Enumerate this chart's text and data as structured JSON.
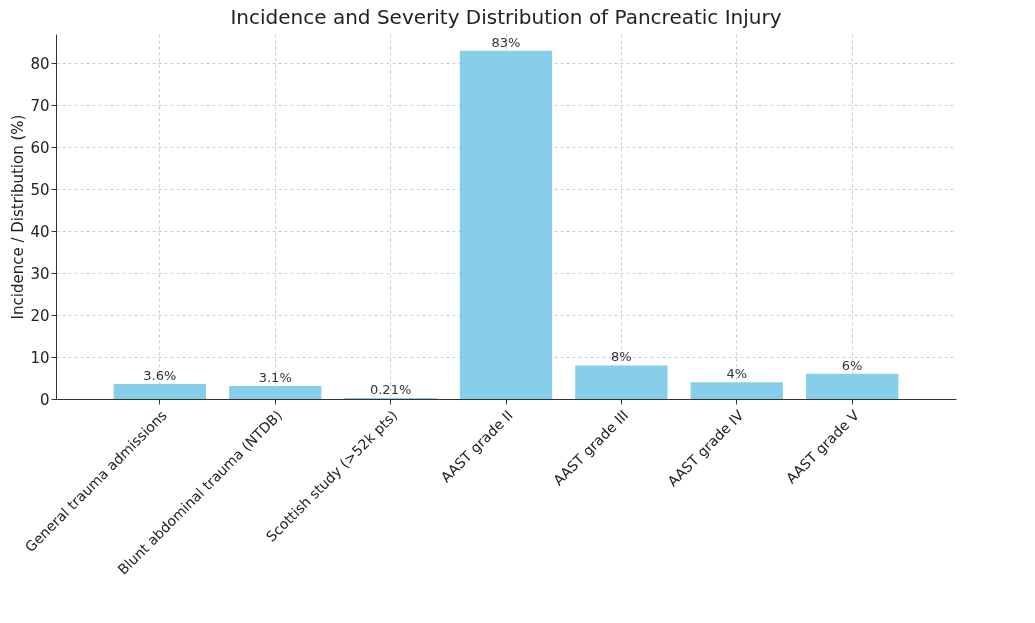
{
  "chart_data": {
    "type": "bar",
    "title": "Incidence and Severity Distribution of Pancreatic Injury",
    "ylabel": "Incidence / Distribution (%)",
    "categories": [
      "General trauma admissions",
      "Blunt abdominal trauma (NTDB)",
      "Scottish study (>52k pts)",
      "AAST grade II",
      "AAST grade III",
      "AAST grade IV",
      "AAST grade V"
    ],
    "values": [
      3.6,
      3.1,
      0.21,
      83,
      8,
      4,
      6
    ],
    "value_labels": [
      "3.6%",
      "3.1%",
      "0.21%",
      "83%",
      "8%",
      "4%",
      "6%"
    ],
    "color": "#87ceeb",
    "ylim": [
      0,
      87
    ],
    "yticks": [
      0,
      10,
      20,
      30,
      40,
      50,
      60,
      70,
      80
    ],
    "grid": true
  }
}
